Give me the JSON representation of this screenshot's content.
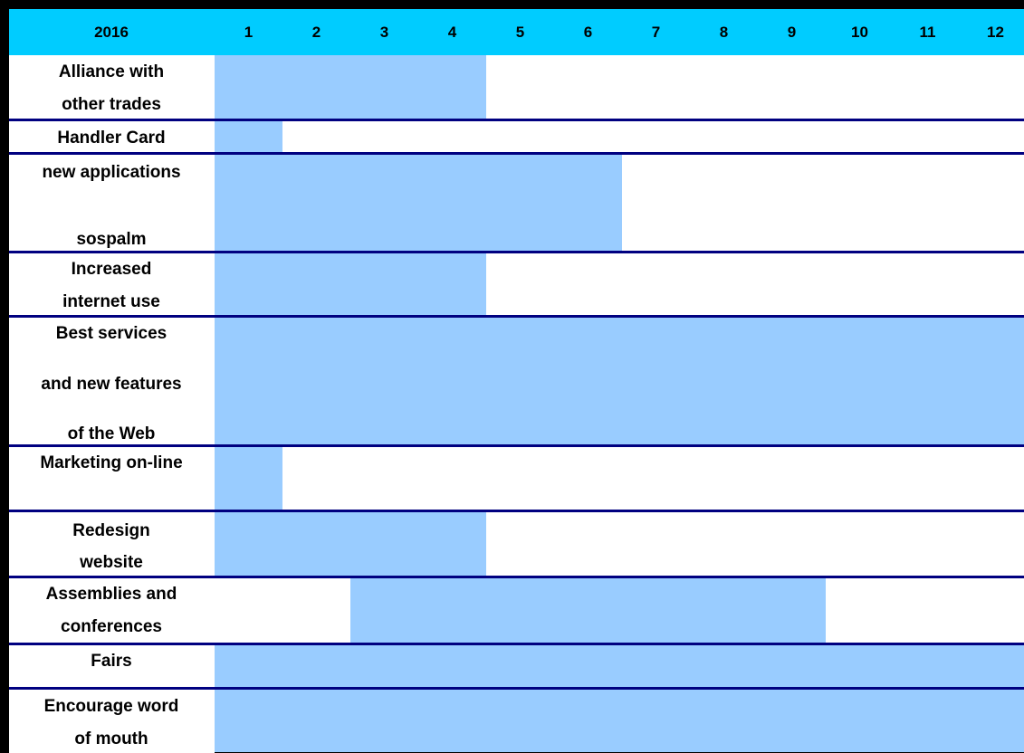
{
  "chart_data": {
    "type": "table",
    "year_label": "2016",
    "months": [
      "1",
      "2",
      "3",
      "4",
      "5",
      "6",
      "7",
      "8",
      "9",
      "10",
      "11",
      "12"
    ],
    "tasks": [
      {
        "lines": [
          "Alliance with",
          "other trades"
        ],
        "start": 1,
        "end": 4
      },
      {
        "lines": [
          "Handler Card"
        ],
        "start": 1,
        "end": 1
      },
      {
        "lines": [
          "new applications",
          "",
          "sospalm"
        ],
        "start": 1,
        "end": 6
      },
      {
        "lines": [
          "Increased",
          "internet use"
        ],
        "start": 1,
        "end": 4
      },
      {
        "lines": [
          "Best services",
          "and new features",
          "of the Web"
        ],
        "start": 1,
        "end": 12
      },
      {
        "lines": [
          "Marketing on-line"
        ],
        "start": 1,
        "end": 1
      },
      {
        "lines": [
          "Redesign",
          "website"
        ],
        "start": 1,
        "end": 4
      },
      {
        "lines": [
          "Assemblies and",
          "conferences"
        ],
        "start": 3,
        "end": 9
      },
      {
        "lines": [
          "Fairs"
        ],
        "start": 1,
        "end": 12
      },
      {
        "lines": [
          "Encourage word",
          "of mouth"
        ],
        "start": 1,
        "end": 12
      }
    ],
    "colors": {
      "header": "#00ccff",
      "bar": "#99ccff",
      "separator": "#000080"
    }
  }
}
